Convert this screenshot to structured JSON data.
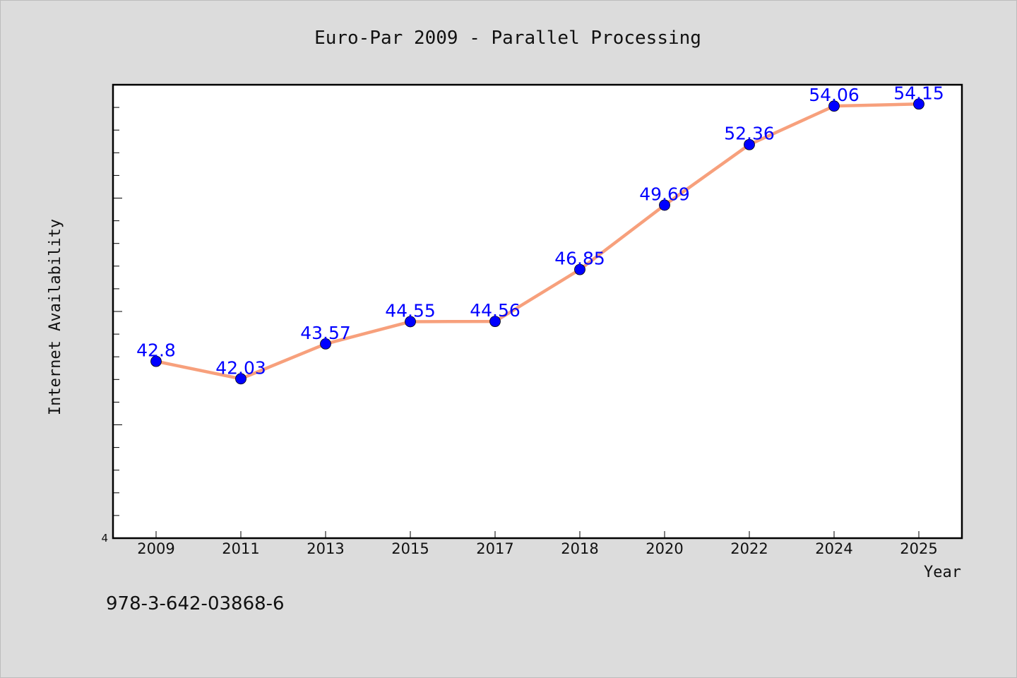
{
  "chart_data": {
    "type": "line",
    "title": "Euro-Par 2009 - Parallel Processing",
    "xlabel": "Year",
    "ylabel": "Internet Availability",
    "categories": [
      "2009",
      "2011",
      "2013",
      "2015",
      "2017",
      "2018",
      "2020",
      "2022",
      "2024",
      "2025"
    ],
    "series": [
      {
        "values": [
          42.8,
          42.03,
          43.57,
          44.55,
          44.56,
          46.85,
          49.69,
          52.36,
          54.06,
          54.15
        ],
        "labels": [
          "42.8",
          "42.03",
          "43.57",
          "44.55",
          "44.56",
          "46.85",
          "49.69",
          "52.36",
          "54.06",
          "54.15"
        ],
        "line_color": "#f7a07c",
        "marker_color": "#0000ff"
      }
    ],
    "ylim": [
      35,
      55
    ],
    "ytick_label": "4",
    "grid": false,
    "legend": "none"
  },
  "footer": {
    "isbn": "978-3-642-03868-6"
  },
  "colors": {
    "background": "#dcdcdc",
    "plot_background": "#ffffff",
    "line": "#f7a07c",
    "marker": "#0000ff",
    "data_label": "#0000ff"
  }
}
